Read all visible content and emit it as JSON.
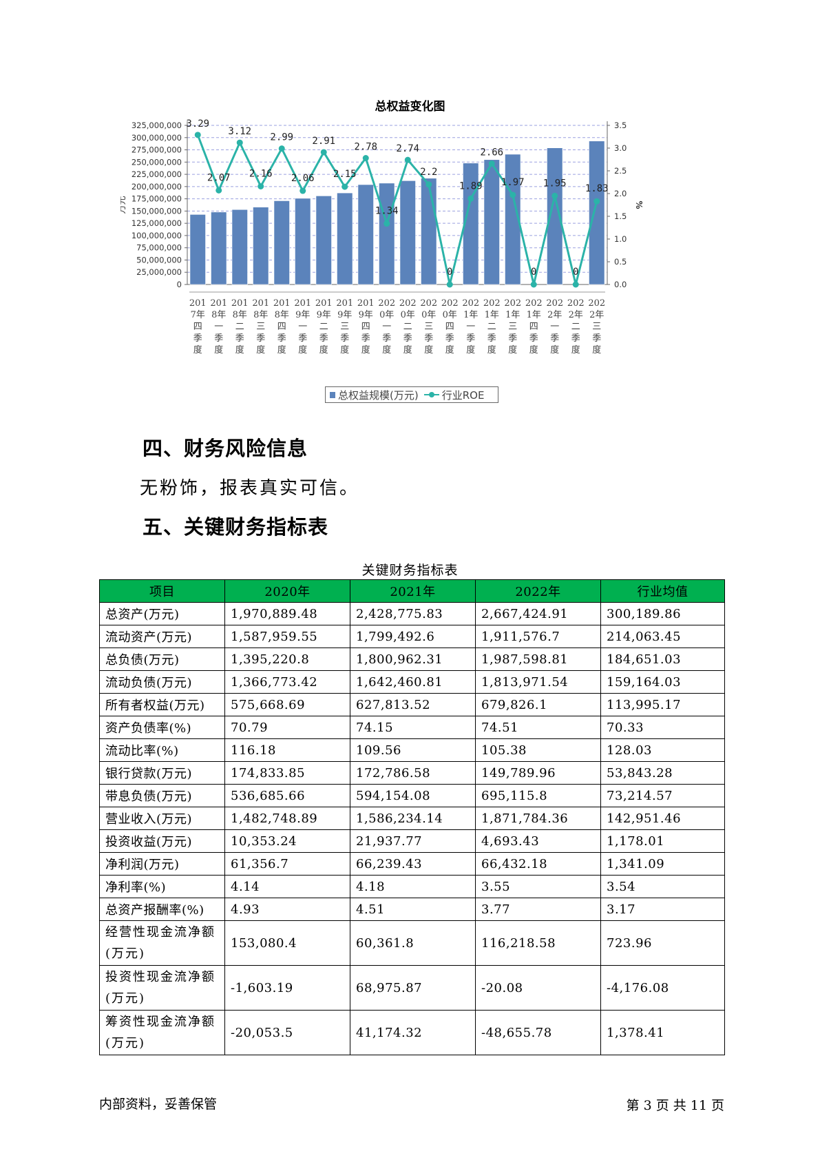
{
  "chart_data": {
    "type": "bar",
    "title": "总权益变化图",
    "ylabel": "万元",
    "y2label": "%",
    "ylim": [
      0,
      325000000
    ],
    "y2lim": [
      0,
      3.5
    ],
    "yticks": [
      "0",
      "25,000,000",
      "50,000,000",
      "75,000,000",
      "100,000,000",
      "125,000,000",
      "150,000,000",
      "175,000,000",
      "200,000,000",
      "225,000,000",
      "250,000,000",
      "275,000,000",
      "300,000,000",
      "325,000,000"
    ],
    "y2ticks": [
      "0.0",
      "0.5",
      "1.0",
      "1.5",
      "2.0",
      "2.5",
      "3.0",
      "3.5"
    ],
    "grid": true,
    "legend_position": "bottom",
    "categories": [
      [
        "201",
        "7年",
        "四",
        "季",
        "度"
      ],
      [
        "201",
        "8年",
        "一",
        "季",
        "度"
      ],
      [
        "201",
        "8年",
        "二",
        "季",
        "度"
      ],
      [
        "201",
        "8年",
        "三",
        "季",
        "度"
      ],
      [
        "201",
        "8年",
        "四",
        "季",
        "度"
      ],
      [
        "201",
        "9年",
        "一",
        "季",
        "度"
      ],
      [
        "201",
        "9年",
        "二",
        "季",
        "度"
      ],
      [
        "201",
        "9年",
        "三",
        "季",
        "度"
      ],
      [
        "201",
        "9年",
        "四",
        "季",
        "度"
      ],
      [
        "202",
        "0年",
        "一",
        "季",
        "度"
      ],
      [
        "202",
        "0年",
        "二",
        "季",
        "度"
      ],
      [
        "202",
        "0年",
        "三",
        "季",
        "度"
      ],
      [
        "202",
        "0年",
        "四",
        "季",
        "度"
      ],
      [
        "202",
        "1年",
        "一",
        "季",
        "度"
      ],
      [
        "202",
        "1年",
        "二",
        "季",
        "度"
      ],
      [
        "202",
        "1年",
        "三",
        "季",
        "度"
      ],
      [
        "202",
        "1年",
        "四",
        "季",
        "度"
      ],
      [
        "202",
        "2年",
        "一",
        "季",
        "度"
      ],
      [
        "202",
        "2年",
        "二",
        "季",
        "度"
      ],
      [
        "202",
        "2年",
        "三",
        "季",
        "度"
      ]
    ],
    "series": [
      {
        "name": "总权益规模(万元)",
        "type": "bar",
        "color": "#5b83bb",
        "values": [
          143000000,
          148000000,
          153000000,
          158000000,
          171000000,
          176000000,
          181000000,
          187000000,
          204000000,
          207000000,
          212000000,
          217000000,
          null,
          248000000,
          255000000,
          266000000,
          null,
          279000000,
          null,
          293000000
        ]
      },
      {
        "name": "行业ROE",
        "type": "line",
        "color": "#2bb3a8",
        "values": [
          3.29,
          2.07,
          3.12,
          2.16,
          2.99,
          2.06,
          2.91,
          2.15,
          2.78,
          1.34,
          2.74,
          2.2,
          0,
          1.89,
          2.66,
          1.97,
          0,
          1.95,
          0,
          1.83
        ],
        "labels": [
          "3.29",
          "2.07",
          "3.12",
          "2.16",
          "2.99",
          "2.06",
          "2.91",
          "2.15",
          "2.78",
          "1.34",
          "2.74",
          "2.2",
          "0",
          "1.89",
          "2.66",
          "1.97",
          "0",
          "1.95",
          "0",
          "1.83"
        ]
      }
    ]
  },
  "sections": {
    "risk_heading": "四、财务风险信息",
    "risk_text": "无粉饰，报表真实可信。",
    "table_heading": "五、关键财务指标表"
  },
  "table": {
    "caption": "关键财务指标表",
    "headers": [
      "项目",
      "2020年",
      "2021年",
      "2022年",
      "行业均值"
    ],
    "rows": [
      [
        "总资产(万元)",
        "1,970,889.48",
        "2,428,775.83",
        "2,667,424.91",
        "300,189.86"
      ],
      [
        "流动资产(万元)",
        "1,587,959.55",
        "1,799,492.6",
        "1,911,576.7",
        "214,063.45"
      ],
      [
        "总负债(万元)",
        "1,395,220.8",
        "1,800,962.31",
        "1,987,598.81",
        "184,651.03"
      ],
      [
        "流动负债(万元)",
        "1,366,773.42",
        "1,642,460.81",
        "1,813,971.54",
        "159,164.03"
      ],
      [
        "所有者权益(万元)",
        "575,668.69",
        "627,813.52",
        "679,826.1",
        "113,995.17"
      ],
      [
        "资产负债率(%)",
        "70.79",
        "74.15",
        "74.51",
        "70.33"
      ],
      [
        "流动比率(%)",
        "116.18",
        "109.56",
        "105.38",
        "128.03"
      ],
      [
        "银行贷款(万元)",
        "174,833.85",
        "172,786.58",
        "149,789.96",
        "53,843.28"
      ],
      [
        "带息负债(万元)",
        "536,685.66",
        "594,154.08",
        "695,115.8",
        "73,214.57"
      ],
      [
        "营业收入(万元)",
        "1,482,748.89",
        "1,586,234.14",
        "1,871,784.36",
        "142,951.46"
      ],
      [
        "投资收益(万元)",
        "10,353.24",
        "21,937.77",
        "4,693.43",
        "1,178.01"
      ],
      [
        "净利润(万元)",
        "61,356.7",
        "66,239.43",
        "66,432.18",
        "1,341.09"
      ],
      [
        "净利率(%)",
        "4.14",
        "4.18",
        "3.55",
        "3.54"
      ],
      [
        "总资产报酬率(%)",
        "4.93",
        "4.51",
        "3.77",
        "3.17"
      ],
      [
        "经营性现金流净额(万元)",
        "153,080.4",
        "60,361.8",
        "116,218.58",
        "723.96"
      ],
      [
        "投资性现金流净额(万元)",
        "-1,603.19",
        "68,975.87",
        "-20.08",
        "-4,176.08"
      ],
      [
        "筹资性现金流净额(万元)",
        "-20,053.5",
        "41,174.32",
        "-48,655.78",
        "1,378.41"
      ]
    ]
  },
  "footer": {
    "left": "内部资料，妥善保管",
    "right": "第 3 页   共 11 页"
  }
}
